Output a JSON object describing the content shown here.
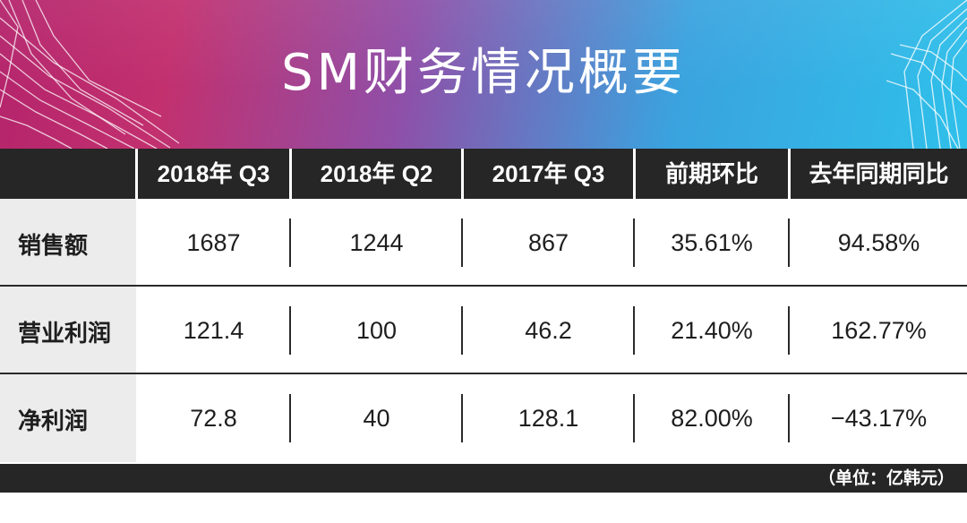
{
  "title": "SM财务情况概要",
  "columns": [
    "2018年 Q3",
    "2018年 Q2",
    "2017年 Q3",
    "前期环比",
    "去年同期同比"
  ],
  "rows": [
    {
      "label": "销售额",
      "values": [
        "1687",
        "1244",
        "867",
        "35.61%",
        "94.58%"
      ]
    },
    {
      "label": "营业利润",
      "values": [
        "121.4",
        "100",
        "46.2",
        "21.40%",
        "162.77%"
      ]
    },
    {
      "label": "净利润",
      "values": [
        "72.8",
        "40",
        "128.1",
        "82.00%",
        "−43.17%"
      ]
    }
  ],
  "unit_note": "（单位：亿韩元）",
  "colors": {
    "banner_left": "#c2306e",
    "banner_right": "#2fc0ea",
    "header": "#262626",
    "label_bg": "#ececec"
  }
}
